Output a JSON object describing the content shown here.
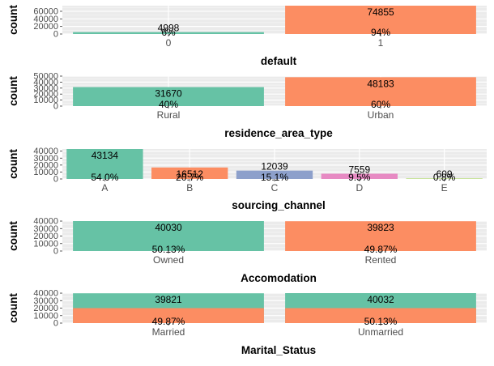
{
  "chart_data": [
    {
      "type": "bar",
      "xlabel": "default",
      "ylabel": "count",
      "categories": [
        "0",
        "1"
      ],
      "values": [
        4998,
        74855
      ],
      "percent_labels": [
        "6%",
        "94%"
      ],
      "count_labels": [
        "4998",
        "74855"
      ],
      "yticks": [
        0,
        20000,
        40000,
        60000
      ],
      "ytick_labels": [
        "0",
        "20000",
        "40000",
        "60000"
      ],
      "ylim": [
        0,
        74855
      ],
      "colors": [
        "#66c2a5",
        "#fc8d62"
      ],
      "grid": true
    },
    {
      "type": "bar",
      "xlabel": "residence_area_type",
      "ylabel": "count",
      "categories": [
        "Rural",
        "Urban"
      ],
      "values": [
        31670,
        48183
      ],
      "percent_labels": [
        "40%",
        "60%"
      ],
      "count_labels": [
        "31670",
        "48183"
      ],
      "yticks": [
        0,
        10000,
        20000,
        30000,
        40000,
        50000
      ],
      "ytick_labels": [
        "0",
        "10000",
        "20000",
        "30000",
        "40000",
        "50000"
      ],
      "ylim": [
        0,
        50000
      ],
      "colors": [
        "#66c2a5",
        "#fc8d62"
      ],
      "grid": true
    },
    {
      "type": "bar",
      "xlabel": "sourcing_channel",
      "ylabel": "count",
      "categories": [
        "A",
        "B",
        "C",
        "D",
        "E"
      ],
      "values": [
        43134,
        16512,
        12039,
        7559,
        609
      ],
      "percent_labels": [
        "54.0%",
        "20.7%",
        "15.1%",
        "9.5%",
        "0.8%"
      ],
      "count_labels": [
        "43134",
        "16512",
        "12039",
        "7559",
        "609"
      ],
      "yticks": [
        0,
        10000,
        20000,
        30000,
        40000
      ],
      "ytick_labels": [
        "0",
        "10000",
        "20000",
        "30000",
        "40000"
      ],
      "ylim": [
        0,
        43134
      ],
      "colors": [
        "#66c2a5",
        "#fc8d62",
        "#8da0cb",
        "#e78ac3",
        "#a6d854"
      ],
      "grid": true
    },
    {
      "type": "bar",
      "xlabel": "Accomodation",
      "ylabel": "count",
      "categories": [
        "Owned",
        "Rented"
      ],
      "values": [
        40030,
        39823
      ],
      "percent_labels": [
        "50.13%",
        "49.87%"
      ],
      "count_labels": [
        "40030",
        "39823"
      ],
      "yticks": [
        0,
        10000,
        20000,
        30000,
        40000
      ],
      "ytick_labels": [
        "0",
        "10000",
        "20000",
        "30000",
        "40000"
      ],
      "ylim": [
        0,
        40030
      ],
      "colors": [
        "#66c2a5",
        "#fc8d62"
      ],
      "grid": true
    },
    {
      "type": "bar",
      "xlabel": "Marital_Status",
      "ylabel": "count",
      "categories": [
        "Married",
        "Unmarried"
      ],
      "values": [
        39821,
        40032
      ],
      "percent_labels": [
        "49.87%",
        "50.13%"
      ],
      "count_labels": [
        "39821",
        "40032"
      ],
      "yticks": [
        0,
        10000,
        20000,
        30000,
        40000
      ],
      "ytick_labels": [
        "0",
        "10000",
        "20000",
        "30000",
        "40000"
      ],
      "ylim": [
        0,
        40032
      ],
      "colors": [
        "#66c2a5",
        "#66c2a5"
      ],
      "overlay_value": 20000,
      "overlay_color": "#fc8d62",
      "grid": true
    }
  ]
}
